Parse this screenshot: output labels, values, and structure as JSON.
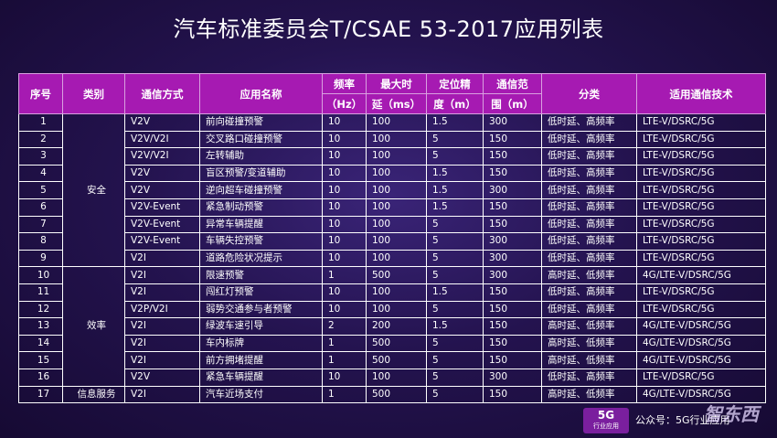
{
  "title": "汽车标准委员会T/CSAE 53-2017应用列表",
  "headers": {
    "seq": "序号",
    "category": "类别",
    "comm_mode": "通信方式",
    "app_name": "应用名称",
    "freq_line1": "频率",
    "freq_line2": "（Hz）",
    "latency_line1": "最大时",
    "latency_line2": "延（ms）",
    "accuracy_line1": "定位精",
    "accuracy_line2": "度（m）",
    "range_line1": "通信范",
    "range_line2": "围（m）",
    "classification": "分类",
    "tech": "适用通信技术"
  },
  "categories": {
    "safety": "安全",
    "efficiency": "效率",
    "info": "信息服务"
  },
  "rows": [
    {
      "seq": "1",
      "mode": "V2V",
      "app": "前向碰撞预警",
      "freq": "10",
      "latency": "100",
      "accuracy": "1.5",
      "range": "300",
      "class": "低时延、高频率",
      "tech": "LTE-V/DSRC/5G"
    },
    {
      "seq": "2",
      "mode": "V2V/V2I",
      "app": "交叉路口碰撞预警",
      "freq": "10",
      "latency": "100",
      "accuracy": "5",
      "range": "150",
      "class": "低时延、高频率",
      "tech": "LTE-V/DSRC/5G"
    },
    {
      "seq": "3",
      "mode": "V2V/V2I",
      "app": "左转辅助",
      "freq": "10",
      "latency": "100",
      "accuracy": "5",
      "range": "150",
      "class": "低时延、高频率",
      "tech": "LTE-V/DSRC/5G"
    },
    {
      "seq": "4",
      "mode": "V2V",
      "app": "盲区预警/变道辅助",
      "freq": "10",
      "latency": "100",
      "accuracy": "1.5",
      "range": "150",
      "class": "低时延、高频率",
      "tech": "LTE-V/DSRC/5G"
    },
    {
      "seq": "5",
      "mode": "V2V",
      "app": "逆向超车碰撞预警",
      "freq": "10",
      "latency": "100",
      "accuracy": "1.5",
      "range": "300",
      "class": "低时延、高频率",
      "tech": "LTE-V/DSRC/5G"
    },
    {
      "seq": "6",
      "mode": "V2V-Event",
      "app": "紧急制动预警",
      "freq": "10",
      "latency": "100",
      "accuracy": "1.5",
      "range": "150",
      "class": "低时延、高频率",
      "tech": "LTE-V/DSRC/5G"
    },
    {
      "seq": "7",
      "mode": "V2V-Event",
      "app": "异常车辆提醒",
      "freq": "10",
      "latency": "100",
      "accuracy": "5",
      "range": "150",
      "class": "低时延、高频率",
      "tech": "LTE-V/DSRC/5G"
    },
    {
      "seq": "8",
      "mode": "V2V-Event",
      "app": "车辆失控预警",
      "freq": "10",
      "latency": "100",
      "accuracy": "5",
      "range": "300",
      "class": "低时延、高频率",
      "tech": "LTE-V/DSRC/5G"
    },
    {
      "seq": "9",
      "mode": "V2I",
      "app": "道路危险状况提示",
      "freq": "10",
      "latency": "100",
      "accuracy": "5",
      "range": "300",
      "class": "低时延、高频率",
      "tech": "LTE-V/DSRC/5G"
    },
    {
      "seq": "10",
      "mode": "V2I",
      "app": "限速预警",
      "freq": "1",
      "latency": "500",
      "accuracy": "5",
      "range": "300",
      "class": "高时延、低频率",
      "tech": "4G/LTE-V/DSRC/5G"
    },
    {
      "seq": "11",
      "mode": "V2I",
      "app": "闯红灯预警",
      "freq": "10",
      "latency": "100",
      "accuracy": "1.5",
      "range": "150",
      "class": "低时延、高频率",
      "tech": "LTE-V/DSRC/5G"
    },
    {
      "seq": "12",
      "mode": "V2P/V2I",
      "app": "弱势交通参与者预警",
      "freq": "10",
      "latency": "100",
      "accuracy": "5",
      "range": "150",
      "class": "低时延、高频率",
      "tech": "LTE-V/DSRC/5G"
    },
    {
      "seq": "13",
      "mode": "V2I",
      "app": "绿波车速引导",
      "freq": "2",
      "latency": "200",
      "accuracy": "1.5",
      "range": "150",
      "class": "高时延、低频率",
      "tech": "4G/LTE-V/DSRC/5G"
    },
    {
      "seq": "14",
      "mode": "V2I",
      "app": "车内标牌",
      "freq": "1",
      "latency": "500",
      "accuracy": "5",
      "range": "150",
      "class": "高时延、低频率",
      "tech": "4G/LTE-V/DSRC/5G"
    },
    {
      "seq": "15",
      "mode": "V2I",
      "app": "前方拥堵提醒",
      "freq": "1",
      "latency": "500",
      "accuracy": "5",
      "range": "150",
      "class": "高时延、低频率",
      "tech": "4G/LTE-V/DSRC/5G"
    },
    {
      "seq": "16",
      "mode": "V2V",
      "app": "紧急车辆提醒",
      "freq": "10",
      "latency": "100",
      "accuracy": "5",
      "range": "300",
      "class": "低时延、高频率",
      "tech": "LTE-V/DSRC/5G"
    },
    {
      "seq": "17",
      "mode": "V2I",
      "app": "汽车近场支付",
      "freq": "1",
      "latency": "500",
      "accuracy": "5",
      "range": "150",
      "class": "高时延、低频率",
      "tech": "4G/LTE-V/DSRC/5G"
    }
  ],
  "footer": {
    "logo_main": "5G",
    "logo_sub": "行业应用",
    "account": "公众号：5G行业应用",
    "brand": "智东西"
  },
  "colors": {
    "header_bg": "#a61ab2",
    "bg_center": "#3a2478",
    "bg_edge": "#160a33"
  }
}
